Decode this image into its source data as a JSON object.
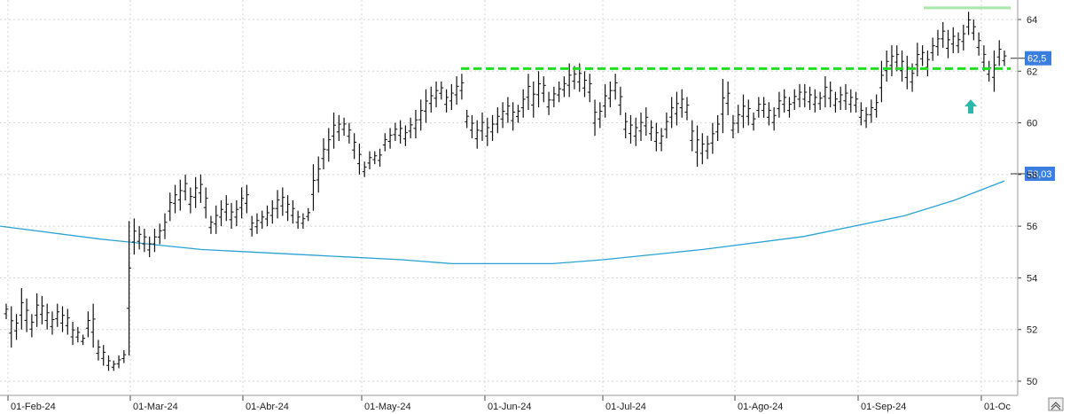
{
  "chart_data": {
    "type": "ohlc",
    "title": "",
    "xlabel": "",
    "ylabel": "",
    "ylim": [
      49.5,
      65
    ],
    "y_ticks": [
      "50",
      "52",
      "54",
      "56",
      "58",
      "60",
      "62",
      "64"
    ],
    "x_ticks": [
      "01-Feb-24",
      "01-Mar-24",
      "01-Abr-24",
      "01-May-24",
      "01-Jun-24",
      "01-Jul-24",
      "01-Ago-24",
      "01-Sep-24",
      "01-Oc"
    ],
    "grid": true,
    "bars": [
      [
        53.0,
        52.4
      ],
      [
        52.9,
        51.3
      ],
      [
        52.6,
        51.6
      ],
      [
        53.6,
        52.0
      ],
      [
        53.2,
        51.9
      ],
      [
        52.6,
        51.7
      ],
      [
        53.4,
        52.1
      ],
      [
        53.3,
        52.2
      ],
      [
        53.0,
        52.0
      ],
      [
        52.7,
        51.8
      ],
      [
        53.0,
        52.1
      ],
      [
        52.9,
        51.9
      ],
      [
        52.8,
        51.8
      ],
      [
        52.3,
        51.4
      ],
      [
        52.1,
        51.5
      ],
      [
        51.8,
        51.4
      ],
      [
        52.7,
        51.7
      ],
      [
        53.0,
        51.3
      ],
      [
        51.6,
        50.8
      ],
      [
        51.4,
        50.6
      ],
      [
        51.0,
        50.4
      ],
      [
        50.8,
        50.4
      ],
      [
        51.0,
        50.5
      ],
      [
        51.2,
        50.7
      ],
      [
        56.2,
        51.0
      ],
      [
        56.3,
        54.9
      ],
      [
        56.0,
        55.1
      ],
      [
        55.9,
        55.0
      ],
      [
        55.6,
        54.8
      ],
      [
        55.9,
        55.0
      ],
      [
        56.1,
        55.3
      ],
      [
        56.5,
        55.5
      ],
      [
        57.3,
        56.2
      ],
      [
        57.6,
        56.5
      ],
      [
        57.8,
        56.6
      ],
      [
        58.0,
        57.0
      ],
      [
        57.5,
        56.5
      ],
      [
        57.9,
        56.7
      ],
      [
        58.0,
        56.9
      ],
      [
        57.5,
        56.3
      ],
      [
        56.4,
        55.7
      ],
      [
        56.8,
        55.7
      ],
      [
        57.0,
        56.0
      ],
      [
        57.2,
        56.2
      ],
      [
        56.9,
        55.9
      ],
      [
        57.0,
        56.0
      ],
      [
        57.5,
        56.3
      ],
      [
        57.6,
        56.5
      ],
      [
        56.4,
        55.6
      ],
      [
        56.5,
        55.7
      ],
      [
        56.6,
        55.9
      ],
      [
        56.8,
        56.0
      ],
      [
        57.0,
        56.1
      ],
      [
        57.4,
        56.3
      ],
      [
        57.5,
        56.4
      ],
      [
        57.2,
        56.2
      ],
      [
        57.0,
        56.1
      ],
      [
        56.6,
        55.9
      ],
      [
        56.5,
        55.9
      ],
      [
        56.7,
        56.2
      ],
      [
        58.4,
        56.6
      ],
      [
        58.7,
        57.3
      ],
      [
        59.4,
        58.2
      ],
      [
        59.8,
        58.5
      ],
      [
        60.4,
        59.0
      ],
      [
        60.3,
        59.3
      ],
      [
        60.2,
        59.5
      ],
      [
        60.0,
        59.2
      ],
      [
        59.6,
        58.6
      ],
      [
        59.2,
        58.0
      ],
      [
        58.5,
        57.9
      ],
      [
        58.9,
        58.2
      ],
      [
        58.9,
        58.4
      ],
      [
        59.0,
        58.3
      ],
      [
        59.6,
        58.9
      ],
      [
        59.8,
        59.0
      ],
      [
        60.0,
        59.3
      ],
      [
        60.1,
        59.2
      ],
      [
        59.9,
        59.1
      ],
      [
        60.2,
        59.4
      ],
      [
        60.5,
        59.4
      ],
      [
        60.9,
        59.7
      ],
      [
        61.3,
        60.0
      ],
      [
        61.4,
        60.4
      ],
      [
        61.6,
        60.6
      ],
      [
        61.6,
        60.9
      ],
      [
        61.3,
        60.4
      ],
      [
        61.5,
        60.5
      ],
      [
        61.8,
        60.7
      ],
      [
        61.9,
        60.9
      ],
      [
        60.5,
        59.8
      ],
      [
        60.3,
        59.4
      ],
      [
        60.1,
        59.0
      ],
      [
        60.4,
        59.3
      ],
      [
        60.2,
        59.1
      ],
      [
        60.3,
        59.3
      ],
      [
        60.6,
        59.6
      ],
      [
        60.8,
        59.8
      ],
      [
        61.0,
        60.0
      ],
      [
        60.8,
        59.7
      ],
      [
        60.7,
        60.0
      ],
      [
        61.3,
        60.2
      ],
      [
        61.9,
        60.5
      ],
      [
        61.6,
        60.2
      ],
      [
        62.0,
        60.6
      ],
      [
        61.8,
        60.8
      ],
      [
        61.2,
        60.3
      ],
      [
        61.4,
        60.6
      ],
      [
        61.6,
        60.8
      ],
      [
        61.8,
        61.0
      ],
      [
        62.3,
        61.0
      ],
      [
        62.2,
        61.3
      ],
      [
        62.3,
        61.2
      ],
      [
        62.0,
        61.0
      ],
      [
        61.9,
        60.8
      ],
      [
        60.9,
        59.5
      ],
      [
        60.8,
        59.8
      ],
      [
        61.5,
        60.2
      ],
      [
        61.6,
        60.6
      ],
      [
        61.9,
        60.9
      ],
      [
        61.4,
        60.3
      ],
      [
        60.4,
        59.4
      ],
      [
        60.3,
        59.2
      ],
      [
        60.2,
        59.1
      ],
      [
        60.4,
        59.3
      ],
      [
        60.6,
        59.5
      ],
      [
        60.1,
        59.3
      ],
      [
        60.0,
        58.9
      ],
      [
        59.8,
        58.9
      ],
      [
        60.4,
        59.4
      ],
      [
        61.0,
        59.8
      ],
      [
        61.2,
        59.9
      ],
      [
        61.3,
        60.2
      ],
      [
        61.0,
        60.1
      ],
      [
        60.1,
        58.9
      ],
      [
        59.9,
        58.3
      ],
      [
        59.6,
        58.4
      ],
      [
        59.5,
        58.6
      ],
      [
        60.0,
        58.8
      ],
      [
        60.3,
        59.3
      ],
      [
        61.7,
        59.6
      ],
      [
        61.6,
        60.3
      ],
      [
        60.3,
        59.4
      ],
      [
        60.7,
        59.6
      ],
      [
        61.1,
        59.8
      ],
      [
        60.9,
        59.9
      ],
      [
        60.4,
        59.7
      ],
      [
        61.0,
        60.2
      ],
      [
        61.0,
        60.2
      ],
      [
        60.8,
        59.9
      ],
      [
        60.6,
        59.7
      ],
      [
        61.2,
        60.2
      ],
      [
        61.3,
        60.4
      ],
      [
        61.0,
        60.2
      ],
      [
        61.3,
        60.5
      ],
      [
        61.5,
        60.6
      ],
      [
        61.5,
        60.6
      ],
      [
        61.4,
        60.5
      ],
      [
        61.3,
        60.4
      ],
      [
        61.2,
        60.5
      ],
      [
        61.8,
        60.6
      ],
      [
        61.6,
        60.6
      ],
      [
        61.2,
        60.4
      ],
      [
        61.4,
        60.5
      ],
      [
        61.5,
        60.5
      ],
      [
        61.3,
        60.4
      ],
      [
        61.2,
        60.4
      ],
      [
        60.8,
        59.9
      ],
      [
        60.6,
        59.8
      ],
      [
        60.9,
        60.0
      ],
      [
        61.1,
        60.2
      ],
      [
        62.4,
        60.8
      ],
      [
        62.8,
        61.6
      ],
      [
        63.0,
        61.8
      ],
      [
        63.0,
        62.0
      ],
      [
        62.8,
        61.6
      ],
      [
        62.6,
        61.3
      ],
      [
        62.3,
        61.2
      ],
      [
        63.1,
        61.8
      ],
      [
        63.0,
        62.2
      ],
      [
        62.8,
        61.8
      ],
      [
        63.3,
        62.4
      ],
      [
        63.6,
        62.6
      ],
      [
        63.9,
        62.9
      ],
      [
        63.6,
        62.5
      ],
      [
        63.7,
        62.7
      ],
      [
        63.5,
        62.7
      ],
      [
        63.8,
        62.8
      ],
      [
        64.3,
        63.4
      ],
      [
        64.0,
        63.2
      ],
      [
        63.5,
        62.6
      ],
      [
        63.0,
        62.0
      ],
      [
        62.4,
        61.6
      ],
      [
        62.8,
        61.2
      ],
      [
        63.2,
        62.2
      ],
      [
        62.8,
        62.2
      ]
    ],
    "moving_average": [
      [
        0,
        56.0
      ],
      [
        0.1,
        55.5
      ],
      [
        0.2,
        55.1
      ],
      [
        0.3,
        54.9
      ],
      [
        0.4,
        54.7
      ],
      [
        0.45,
        54.55
      ],
      [
        0.55,
        54.55
      ],
      [
        0.6,
        54.7
      ],
      [
        0.7,
        55.1
      ],
      [
        0.8,
        55.6
      ],
      [
        0.9,
        56.4
      ],
      [
        0.95,
        57.0
      ],
      [
        1,
        57.75
      ]
    ],
    "resistance_level": 62.1,
    "recent_high_level": 64.45,
    "signal": {
      "type": "up-arrow",
      "value": 60.6
    },
    "last_price_label": "62,5",
    "ma_value_label": "58,03",
    "colors": {
      "bars": "#111111",
      "moving_average": "#29a3d6",
      "resistance": "#22dd22",
      "recent_high": "#a8e8a8",
      "arrow": "#2ab8a8",
      "badge": "#3a7ee0",
      "grid": "#d4d4d4"
    }
  },
  "scroll_icon": "double-chevron-icon"
}
